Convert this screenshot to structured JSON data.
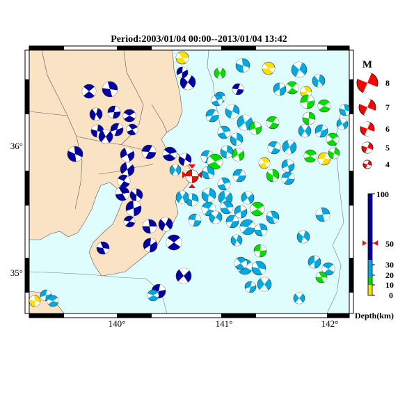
{
  "title": "Period:2003/01/04 00:00--2013/01/04 13:42",
  "axes": {
    "x_ticks": [
      "140°",
      "141°",
      "142°"
    ],
    "y_ticks": [
      "36°",
      "35°"
    ]
  },
  "magnitude_legend": {
    "title": "M",
    "labels": [
      "8",
      "7",
      "6",
      "5",
      "4"
    ]
  },
  "depth_legend": {
    "unit_label": "Depth(km)",
    "tick_labels": [
      "100",
      "50",
      "30",
      "20",
      "10",
      "0"
    ],
    "marker_value": 50
  },
  "colors": {
    "land": "#fae3c4",
    "sea": "#e0fdfd",
    "deep": "#0000a0",
    "mid": "#00a8e0",
    "shallow": "#00dc00",
    "very_shallow": "#ffe000",
    "mainshock": "#ff0000"
  }
}
